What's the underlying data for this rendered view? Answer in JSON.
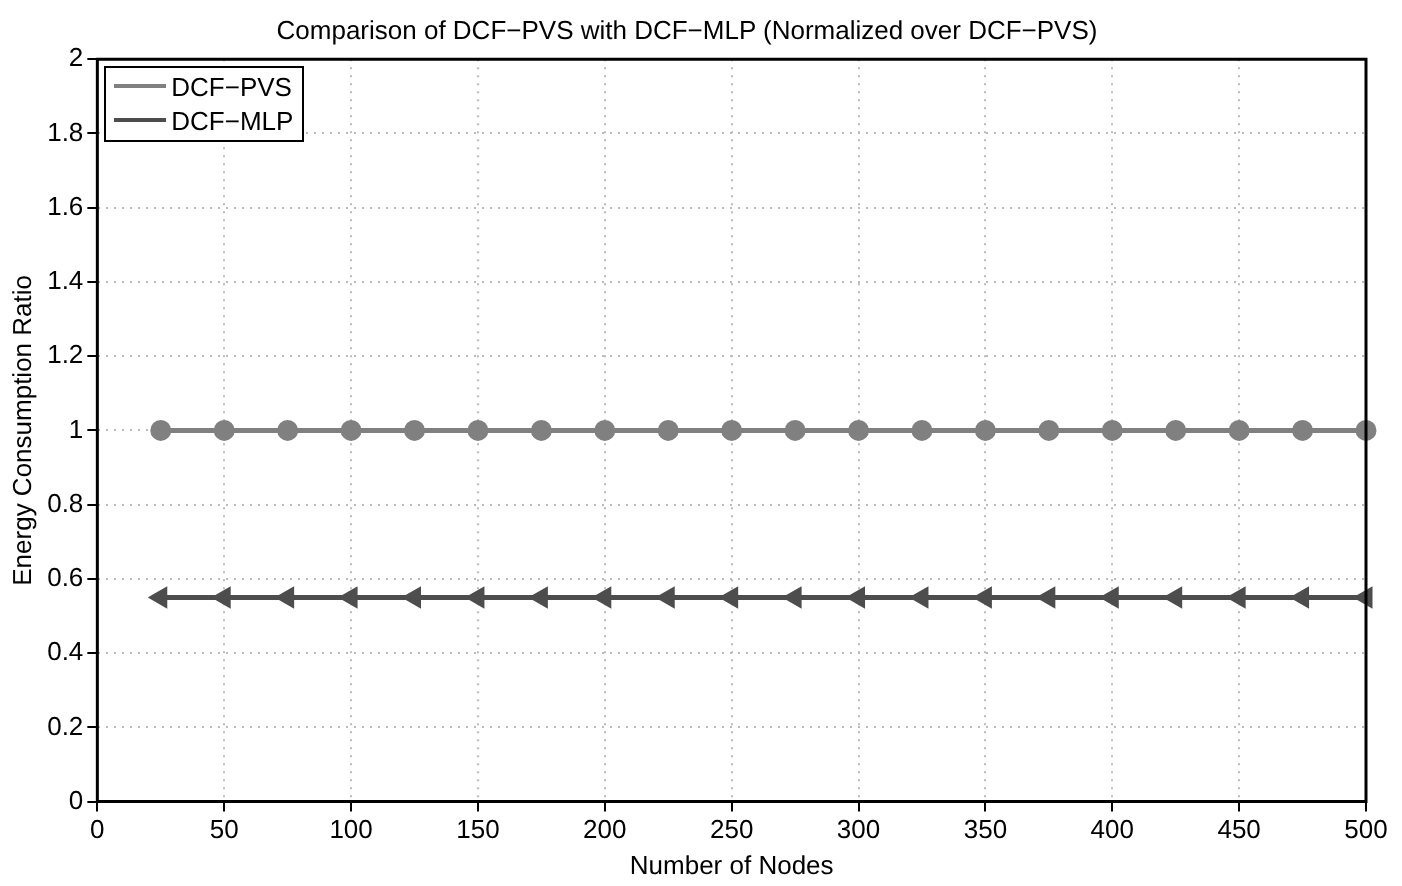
{
  "chart_data": {
    "type": "line",
    "title": "Comparison of DCF−PVS with DCF−MLP (Normalized over DCF−PVS)",
    "xlabel": "Number of Nodes",
    "ylabel": "Energy Consumption Ratio",
    "x": [
      25,
      50,
      75,
      100,
      125,
      150,
      175,
      200,
      225,
      250,
      275,
      300,
      325,
      350,
      375,
      400,
      425,
      450,
      475,
      500
    ],
    "series": [
      {
        "name": "DCF−PVS",
        "color": "#808080",
        "marker": "circle",
        "values": [
          1,
          1,
          1,
          1,
          1,
          1,
          1,
          1,
          1,
          1,
          1,
          1,
          1,
          1,
          1,
          1,
          1,
          1,
          1,
          1
        ]
      },
      {
        "name": "DCF−MLP",
        "color": "#4d4d4d",
        "marker": "triangle",
        "values": [
          0.55,
          0.55,
          0.55,
          0.55,
          0.55,
          0.55,
          0.55,
          0.55,
          0.55,
          0.55,
          0.55,
          0.55,
          0.55,
          0.55,
          0.55,
          0.55,
          0.55,
          0.55,
          0.55,
          0.55
        ]
      }
    ],
    "xlim": [
      0,
      500
    ],
    "xticks": [
      0,
      50,
      100,
      150,
      200,
      250,
      300,
      350,
      400,
      450,
      500
    ],
    "ylim": [
      0,
      2
    ],
    "yticks": [
      0,
      0.2,
      0.4,
      0.6,
      0.8,
      1,
      1.2,
      1.4,
      1.6,
      1.8,
      2
    ],
    "grid": true,
    "legend": "top left",
    "line_style": "solid"
  }
}
